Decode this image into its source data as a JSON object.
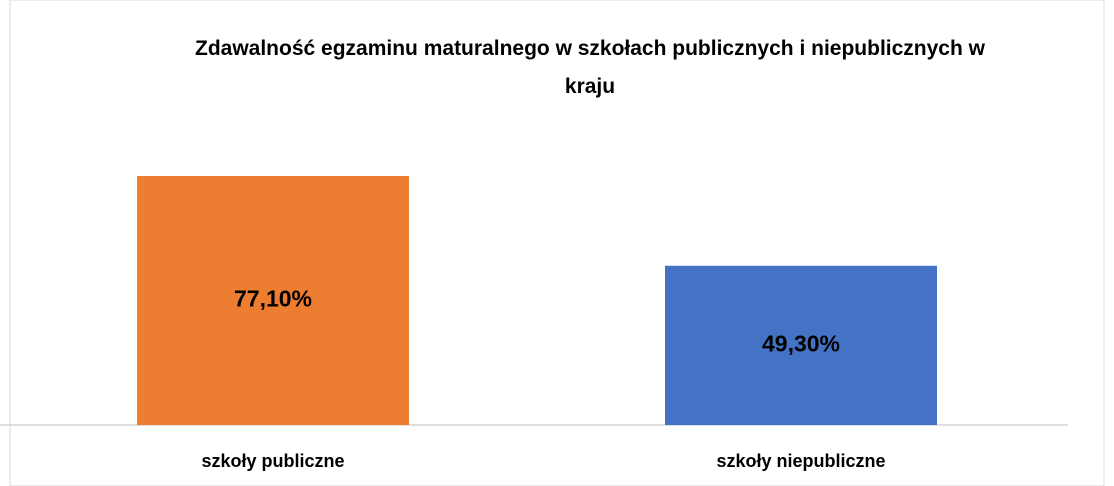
{
  "chart_data": {
    "type": "bar",
    "title": "Zdawalność egzaminu maturalnego w szkołach publicznych i niepublicznych w kraju",
    "categories": [
      "szkoły publiczne",
      "szkoły niepubliczne"
    ],
    "values": [
      77.1,
      49.3
    ],
    "value_labels": [
      "77,10%",
      "49,30%"
    ],
    "colors": [
      "#ed7d31",
      "#4472c4"
    ]
  }
}
